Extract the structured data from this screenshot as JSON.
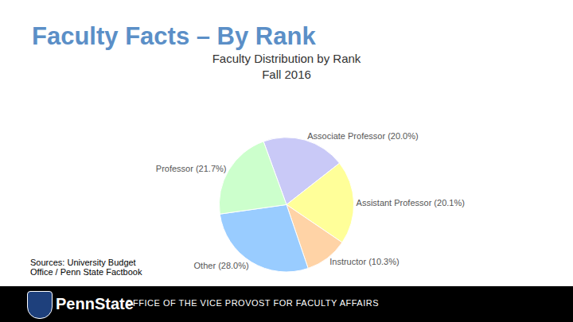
{
  "slide": {
    "heading": "Faculty Facts – By Rank",
    "sources": "Sources: University Budget Office / Penn State Factbook",
    "logo": "PennState",
    "footer": "OFFICE OF THE VICE PROVOST FOR FACULTY AFFAIRS"
  },
  "chart_data": {
    "type": "pie",
    "title": "Faculty Distribution by Rank",
    "subtitle": "Fall 2016",
    "categories": [
      "Associate Professor",
      "Assistant Professor",
      "Instructor",
      "Other",
      "Professor"
    ],
    "values": [
      20.0,
      20.1,
      10.3,
      28.0,
      21.7
    ],
    "value_labels": [
      "Associate Professor (20.0%)",
      "Assistant Professor (20.1%)",
      "Instructor (10.3%)",
      "Other (28.0%)",
      "Professor (21.7%)"
    ],
    "colors": [
      "#c9c9f7",
      "#ffff99",
      "#ffd3a6",
      "#99ccff",
      "#ccffcc"
    ],
    "data_labels": true
  }
}
